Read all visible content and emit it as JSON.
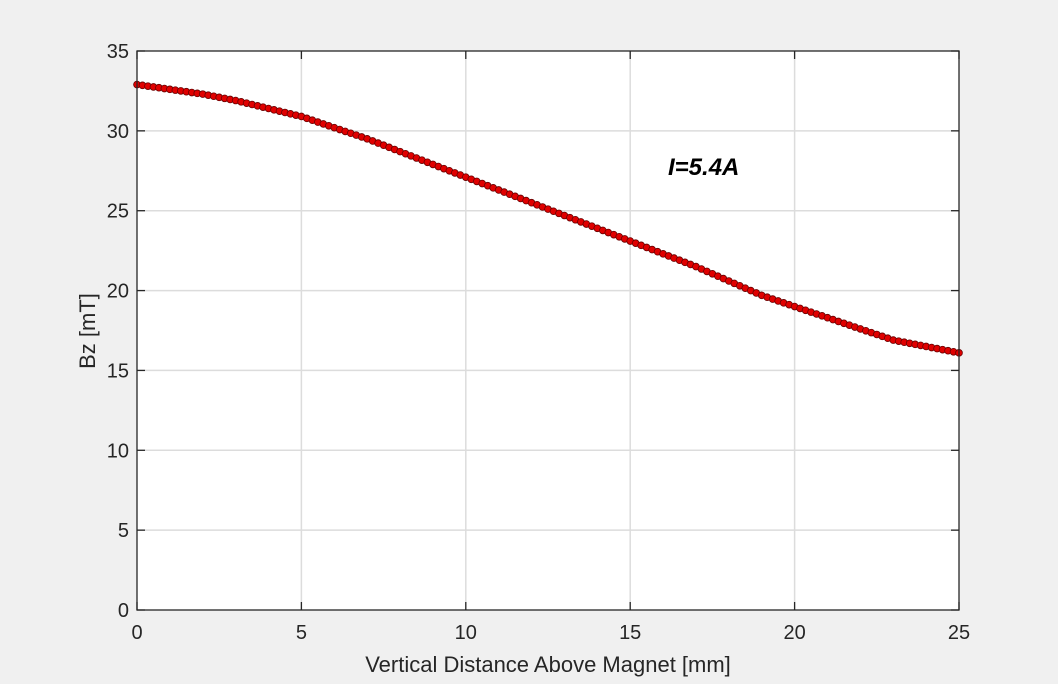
{
  "chart_data": {
    "type": "scatter",
    "title": "",
    "xlabel": "Vertical Distance Above Magnet [mm]",
    "ylabel": "Bz [mT]",
    "xlim": [
      0,
      25
    ],
    "ylim": [
      0,
      35
    ],
    "xticks": [
      0,
      5,
      10,
      15,
      20,
      25
    ],
    "yticks": [
      0,
      5,
      10,
      15,
      20,
      25,
      30,
      35
    ],
    "grid": true,
    "annotation": "I=5.4A",
    "colors": {
      "figure_background": "#f0f0f0",
      "axes_background": "#ffffff",
      "grid": "#dcdcdc",
      "axis": "#262626",
      "marker_fill": "#e00000",
      "marker_edge": "#6a0000"
    },
    "series": [
      {
        "connected": true,
        "x": [
          0,
          1,
          2,
          3,
          4,
          5,
          6,
          7,
          8,
          9,
          10,
          11,
          12,
          13,
          14,
          15,
          16,
          17,
          18,
          19,
          20,
          21,
          22,
          23,
          24,
          25
        ],
        "y": [
          32.9,
          32.6,
          32.3,
          31.9,
          31.4,
          30.9,
          30.2,
          29.5,
          28.7,
          27.9,
          27.1,
          26.3,
          25.5,
          24.7,
          23.9,
          23.1,
          22.3,
          21.5,
          20.6,
          19.7,
          19.0,
          18.3,
          17.6,
          16.9,
          16.5,
          16.1
        ]
      }
    ]
  }
}
